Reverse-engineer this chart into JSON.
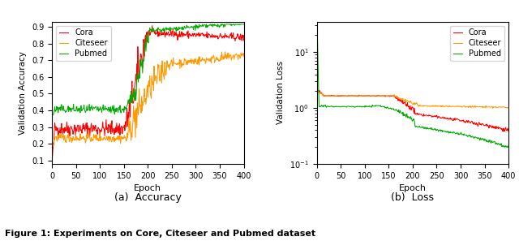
{
  "title_a": "(a)  Accuracy",
  "title_b": "(b)  Loss",
  "figure_caption": "Figure 1: Experiments on Core, Citeseer and Pubmed dataset",
  "xlabel": "Epoch",
  "ylabel_acc": "Validation Accuracy",
  "ylabel_loss": "Validation Loss",
  "colors": {
    "Cora": "#ff0000",
    "Citeseer": "#ff9900",
    "Pubmed": "#00aa00"
  },
  "legend_labels": [
    "Cora",
    "Citeseer",
    "Pubmed"
  ],
  "acc_ylim": [
    0.08,
    0.93
  ],
  "acc_yticks": [
    0.1,
    0.2,
    0.3,
    0.4,
    0.5,
    0.6,
    0.7,
    0.8,
    0.9
  ],
  "loss_ylim_log": [
    0.15,
    35.0
  ],
  "xlim": [
    0,
    400
  ],
  "xticks": [
    0,
    50,
    100,
    150,
    200,
    250,
    300,
    350,
    400
  ],
  "seed": 42
}
